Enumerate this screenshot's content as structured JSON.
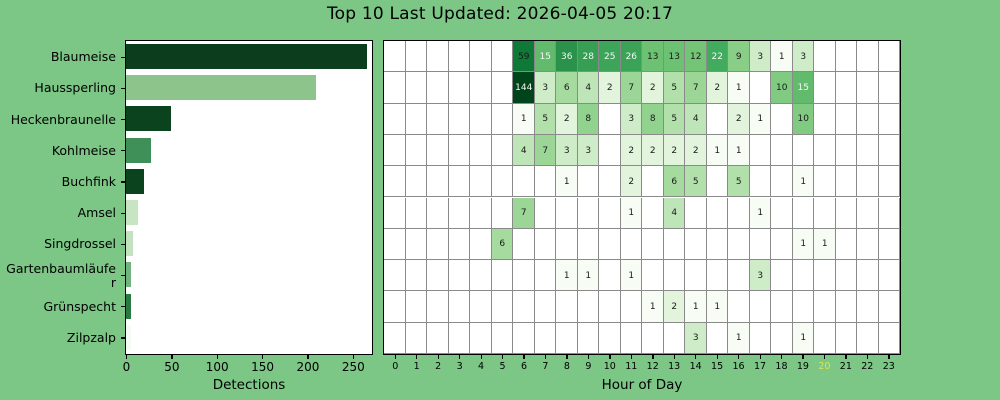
{
  "title": "Top 10 Last Updated: 2026-04-05 20:17",
  "colors": {
    "figure_background": "#7cc686",
    "plot_background": "#ffffff",
    "grid_line": "#8a8a8a",
    "spine": "#000000",
    "text": "#000000",
    "current_hour_label": "#e0e24e"
  },
  "chart_data": [
    {
      "type": "bar",
      "orientation": "horizontal",
      "xlabel": "Detections",
      "xticks": [
        "0",
        "50",
        "100",
        "150",
        "200",
        "250"
      ],
      "xtick_values": [
        0,
        50,
        100,
        150,
        200,
        250
      ],
      "xlim": [
        0,
        270
      ],
      "categories": [
        "Blaumeise",
        "Haussperling",
        "Heckenbraunelle",
        "Kohlmeise",
        "Buchfink",
        "Amsel",
        "Singdrossel",
        "Gartenbaumläufer",
        "Grünspecht",
        "Zilpzalp"
      ],
      "category_label_lines": [
        [
          "Blaumeise"
        ],
        [
          "Haussperling"
        ],
        [
          "Heckenbraunelle"
        ],
        [
          "Kohlmeise"
        ],
        [
          "Buchfink"
        ],
        [
          "Amsel"
        ],
        [
          "Singdrossel"
        ],
        [
          "Gartenbaumläufe",
          "r"
        ],
        [
          "Grünspecht"
        ],
        [
          "Zilpzalp"
        ]
      ],
      "values": [
        265,
        208,
        49,
        27,
        20,
        13,
        8,
        6,
        5,
        5
      ],
      "bar_colors": [
        "#0c3e1e",
        "#8cc48c",
        "#0c431f",
        "#3f9058",
        "#0c431f",
        "#c7e4c3",
        "#c3e2bf",
        "#72b27f",
        "#297a42",
        "#f6faf4"
      ]
    },
    {
      "type": "heatmap",
      "xlabel": "Hour of Day",
      "hour_labels": [
        "0",
        "1",
        "2",
        "3",
        "4",
        "5",
        "6",
        "7",
        "8",
        "9",
        "10",
        "11",
        "12",
        "13",
        "14",
        "15",
        "16",
        "17",
        "18",
        "19",
        "20",
        "21",
        "22",
        "23"
      ],
      "current_hour": "20",
      "colormap": "Greens",
      "log_scale": true,
      "vmin": 1,
      "vmax": 144,
      "white_text_values": [
        15,
        22,
        25,
        26,
        28,
        36,
        144
      ],
      "series": [
        {
          "name": "Blaumeise",
          "cells": {
            "6": 59,
            "7": 15,
            "8": 36,
            "9": 28,
            "10": 25,
            "11": 26,
            "12": 13,
            "13": 13,
            "14": 12,
            "15": 22,
            "16": 9,
            "17": 3,
            "18": 1,
            "19": 3
          }
        },
        {
          "name": "Haussperling",
          "cells": {
            "6": 144,
            "7": 3,
            "8": 6,
            "9": 4,
            "10": 2,
            "11": 7,
            "12": 2,
            "13": 5,
            "14": 7,
            "15": 2,
            "16": 1,
            "18": 10,
            "19": 15
          }
        },
        {
          "name": "Heckenbraunelle",
          "cells": {
            "6": 1,
            "7": 5,
            "8": 2,
            "9": 8,
            "11": 3,
            "12": 8,
            "13": 5,
            "14": 4,
            "16": 2,
            "17": 1,
            "19": 10
          }
        },
        {
          "name": "Kohlmeise",
          "cells": {
            "6": 4,
            "7": 7,
            "8": 3,
            "9": 3,
            "11": 2,
            "12": 2,
            "13": 2,
            "14": 2,
            "15": 1,
            "16": 1
          }
        },
        {
          "name": "Buchfink",
          "cells": {
            "8": 1,
            "11": 2,
            "13": 6,
            "14": 5,
            "16": 5,
            "19": 1
          }
        },
        {
          "name": "Amsel",
          "cells": {
            "6": 7,
            "11": 1,
            "13": 4,
            "17": 1
          }
        },
        {
          "name": "Singdrossel",
          "cells": {
            "5": 6,
            "19": 1,
            "20": 1
          }
        },
        {
          "name": "Gartenbaumläufer",
          "cells": {
            "8": 1,
            "9": 1,
            "11": 1,
            "17": 3
          }
        },
        {
          "name": "Grünspecht",
          "cells": {
            "12": 1,
            "13": 2,
            "14": 1,
            "15": 1
          }
        },
        {
          "name": "Zilpzalp",
          "cells": {
            "14": 3,
            "16": 1,
            "19": 1
          }
        }
      ]
    }
  ]
}
